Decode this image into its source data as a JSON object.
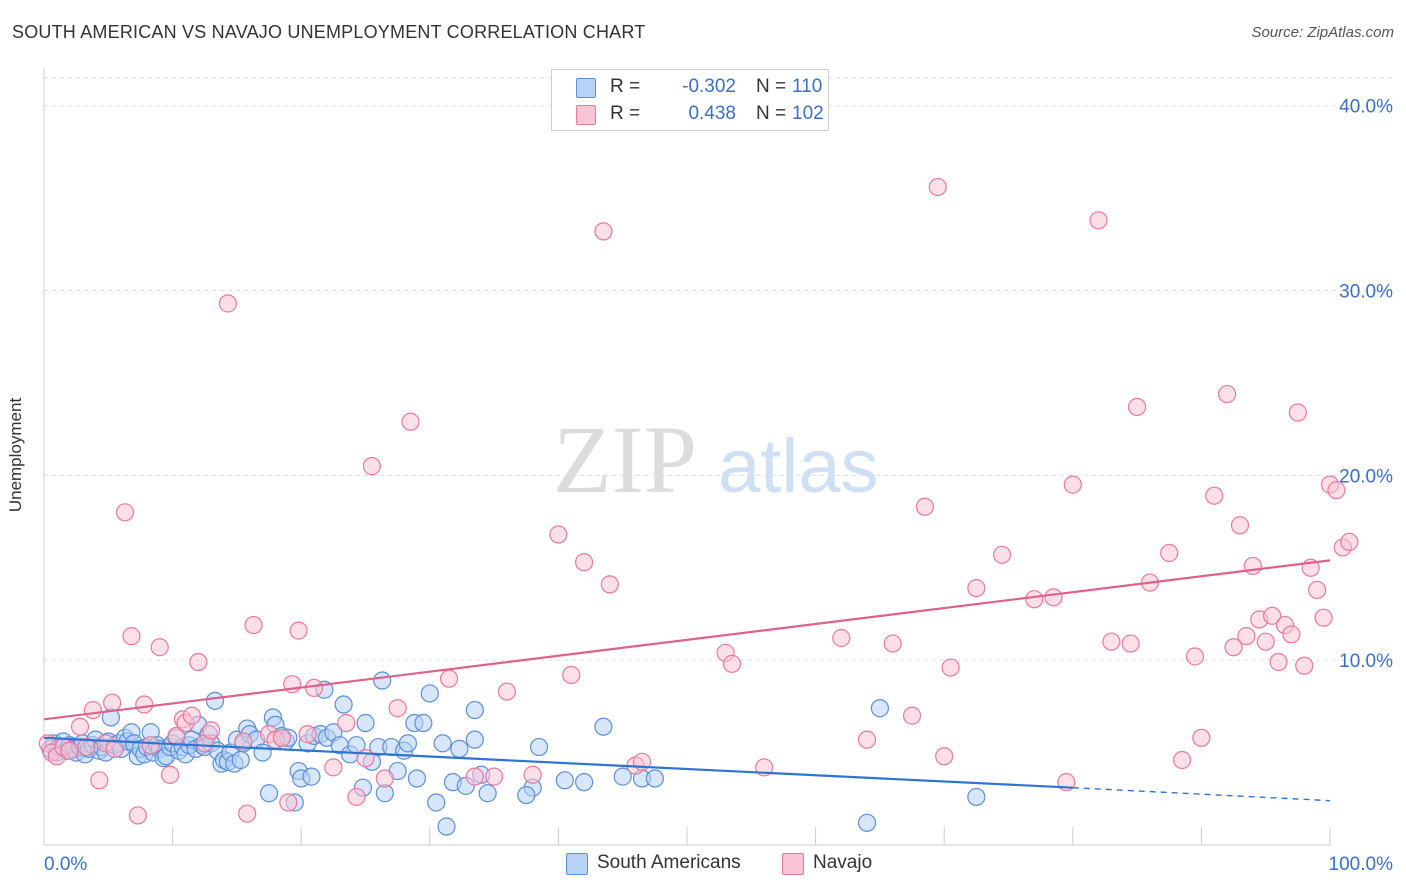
{
  "title": "SOUTH AMERICAN VS NAVAJO UNEMPLOYMENT CORRELATION CHART",
  "source": "Source: ZipAtlas.com",
  "watermark": {
    "zip": "ZIP",
    "atlas": "atlas"
  },
  "legend": {
    "rows": [
      {
        "r_label": "R =",
        "r_value": "-0.302",
        "n_label": "N =",
        "n_value": "110",
        "fill": "#b8d2f5",
        "stroke": "#5b8fd6"
      },
      {
        "r_label": "R =",
        "r_value": "0.438",
        "n_label": "N =",
        "n_value": "102",
        "fill": "#f9c4d4",
        "stroke": "#e8799c"
      }
    ]
  },
  "bottom_legend": [
    {
      "label": "South Americans",
      "fill": "#b8d2f5",
      "stroke": "#5b8fd6"
    },
    {
      "label": "Navajo",
      "fill": "#f9c4d4",
      "stroke": "#e8799c"
    }
  ],
  "chart_data": {
    "type": "scatter",
    "title": "SOUTH AMERICAN VS NAVAJO UNEMPLOYMENT CORRELATION CHART",
    "xlabel": "",
    "ylabel": "Unemployment",
    "xlim": [
      0,
      100
    ],
    "ylim": [
      0,
      41.5
    ],
    "x_tick_labels": [
      {
        "value": 0,
        "label": "0.0%"
      },
      {
        "value": 100,
        "label": "100.0%"
      }
    ],
    "y_tick_labels": [
      {
        "value": 10,
        "label": "10.0%"
      },
      {
        "value": 20,
        "label": "20.0%"
      },
      {
        "value": 30,
        "label": "30.0%"
      },
      {
        "value": 40,
        "label": "40.0%"
      }
    ],
    "y_grid": [
      10,
      20,
      30,
      40
    ],
    "series": [
      {
        "name": "South Americans",
        "color": "#5b8fd6",
        "fill": "#b8d2f5",
        "trend": {
          "x0": 0,
          "y0": 5.8,
          "x1": 80,
          "y1": 3.1,
          "dash_to_x": 100,
          "dash_to_y": 2.4,
          "color": "#2f74d0"
        },
        "points": [
          [
            0.5,
            5.2
          ],
          [
            0.8,
            5.5
          ],
          [
            1.0,
            5.0
          ],
          [
            1.2,
            5.3
          ],
          [
            1.5,
            5.6
          ],
          [
            1.8,
            5.1
          ],
          [
            2.0,
            5.4
          ],
          [
            2.3,
            5.2
          ],
          [
            2.5,
            5.0
          ],
          [
            2.8,
            5.3
          ],
          [
            3.0,
            5.5
          ],
          [
            3.2,
            4.9
          ],
          [
            3.5,
            5.2
          ],
          [
            3.8,
            5.4
          ],
          [
            4.0,
            5.7
          ],
          [
            4.3,
            5.1
          ],
          [
            4.5,
            5.3
          ],
          [
            4.8,
            5.0
          ],
          [
            5.0,
            5.6
          ],
          [
            5.2,
            6.9
          ],
          [
            5.5,
            5.4
          ],
          [
            5.8,
            5.5
          ],
          [
            6.0,
            5.2
          ],
          [
            6.3,
            5.8
          ],
          [
            6.5,
            5.6
          ],
          [
            6.8,
            6.1
          ],
          [
            7.0,
            5.5
          ],
          [
            7.3,
            4.8
          ],
          [
            7.5,
            5.2
          ],
          [
            7.8,
            4.9
          ],
          [
            8.0,
            5.3
          ],
          [
            8.3,
            6.1
          ],
          [
            8.5,
            5.0
          ],
          [
            8.8,
            5.4
          ],
          [
            9.0,
            5.2
          ],
          [
            9.3,
            4.7
          ],
          [
            9.5,
            4.8
          ],
          [
            9.8,
            5.3
          ],
          [
            10.0,
            5.5
          ],
          [
            10.3,
            5.8
          ],
          [
            10.5,
            5.1
          ],
          [
            10.8,
            5.3
          ],
          [
            11.0,
            4.9
          ],
          [
            11.3,
            5.4
          ],
          [
            11.5,
            5.7
          ],
          [
            11.8,
            5.2
          ],
          [
            12.0,
            6.5
          ],
          [
            12.3,
            5.4
          ],
          [
            12.5,
            5.3
          ],
          [
            12.8,
            6.0
          ],
          [
            13.0,
            5.5
          ],
          [
            13.3,
            7.8
          ],
          [
            13.5,
            5.1
          ],
          [
            13.8,
            4.4
          ],
          [
            14.0,
            4.6
          ],
          [
            14.3,
            4.5
          ],
          [
            14.5,
            5.0
          ],
          [
            14.8,
            4.4
          ],
          [
            15.0,
            5.7
          ],
          [
            15.3,
            4.6
          ],
          [
            15.5,
            5.5
          ],
          [
            15.8,
            6.3
          ],
          [
            16.0,
            6.0
          ],
          [
            16.5,
            5.7
          ],
          [
            17.0,
            5.0
          ],
          [
            17.5,
            2.8
          ],
          [
            17.8,
            6.9
          ],
          [
            18.0,
            6.5
          ],
          [
            18.5,
            5.9
          ],
          [
            18.8,
            5.6
          ],
          [
            19.0,
            5.8
          ],
          [
            19.5,
            2.3
          ],
          [
            19.8,
            4.0
          ],
          [
            20.0,
            3.6
          ],
          [
            20.5,
            5.5
          ],
          [
            20.8,
            3.7
          ],
          [
            21.0,
            5.9
          ],
          [
            21.5,
            6.0
          ],
          [
            21.8,
            8.4
          ],
          [
            22.0,
            5.8
          ],
          [
            22.5,
            6.1
          ],
          [
            23.0,
            5.4
          ],
          [
            23.3,
            7.6
          ],
          [
            23.8,
            4.9
          ],
          [
            24.3,
            5.4
          ],
          [
            24.8,
            3.1
          ],
          [
            25.0,
            6.6
          ],
          [
            25.5,
            4.5
          ],
          [
            26.0,
            5.3
          ],
          [
            26.3,
            8.9
          ],
          [
            26.5,
            2.8
          ],
          [
            27.0,
            5.3
          ],
          [
            27.5,
            4.0
          ],
          [
            28.0,
            5.1
          ],
          [
            28.3,
            5.5
          ],
          [
            28.8,
            6.6
          ],
          [
            29.0,
            3.6
          ],
          [
            29.5,
            6.6
          ],
          [
            30.0,
            8.2
          ],
          [
            30.5,
            2.3
          ],
          [
            31.0,
            5.5
          ],
          [
            31.3,
            1.0
          ],
          [
            31.8,
            3.4
          ],
          [
            32.3,
            5.2
          ],
          [
            32.8,
            3.2
          ],
          [
            33.5,
            7.3
          ],
          [
            34.0,
            3.8
          ],
          [
            34.5,
            2.8
          ],
          [
            38.0,
            3.1
          ],
          [
            42.0,
            3.4
          ],
          [
            45.0,
            3.7
          ],
          [
            46.5,
            3.6
          ],
          [
            64.0,
            1.2
          ],
          [
            65.0,
            7.4
          ],
          [
            72.5,
            2.6
          ],
          [
            43.5,
            6.4
          ],
          [
            38.5,
            5.3
          ],
          [
            33.5,
            5.7
          ],
          [
            40.5,
            3.5
          ],
          [
            47.5,
            3.6
          ],
          [
            37.5,
            2.7
          ]
        ]
      },
      {
        "name": "Navajo",
        "color": "#e8799c",
        "fill": "#f9c4d4",
        "trend": {
          "x0": 0,
          "y0": 6.8,
          "x1": 100,
          "y1": 15.4,
          "color": "#e0608d"
        },
        "points": [
          [
            0.3,
            5.5
          ],
          [
            0.6,
            5.0
          ],
          [
            1.0,
            4.8
          ],
          [
            1.5,
            5.3
          ],
          [
            2.0,
            5.1
          ],
          [
            2.8,
            6.4
          ],
          [
            3.3,
            5.3
          ],
          [
            3.8,
            7.3
          ],
          [
            4.3,
            3.5
          ],
          [
            4.8,
            5.5
          ],
          [
            5.3,
            7.7
          ],
          [
            5.5,
            5.2
          ],
          [
            6.3,
            18.0
          ],
          [
            6.8,
            11.3
          ],
          [
            7.3,
            1.6
          ],
          [
            7.8,
            7.6
          ],
          [
            8.3,
            5.4
          ],
          [
            9.0,
            10.7
          ],
          [
            9.8,
            3.8
          ],
          [
            10.3,
            5.9
          ],
          [
            10.8,
            6.8
          ],
          [
            11.0,
            6.6
          ],
          [
            11.5,
            7.0
          ],
          [
            12.0,
            9.9
          ],
          [
            12.5,
            5.5
          ],
          [
            13.0,
            6.2
          ],
          [
            14.3,
            29.3
          ],
          [
            15.5,
            5.6
          ],
          [
            15.8,
            1.7
          ],
          [
            16.3,
            11.9
          ],
          [
            17.5,
            6.0
          ],
          [
            18.0,
            5.7
          ],
          [
            18.5,
            5.8
          ],
          [
            19.0,
            2.3
          ],
          [
            19.3,
            8.7
          ],
          [
            19.8,
            11.6
          ],
          [
            20.5,
            6.0
          ],
          [
            21.0,
            8.5
          ],
          [
            22.5,
            4.2
          ],
          [
            23.5,
            6.6
          ],
          [
            24.3,
            2.6
          ],
          [
            25.0,
            4.7
          ],
          [
            25.5,
            20.5
          ],
          [
            26.5,
            3.6
          ],
          [
            27.5,
            7.4
          ],
          [
            28.5,
            22.9
          ],
          [
            31.5,
            9.0
          ],
          [
            33.5,
            3.7
          ],
          [
            35.0,
            3.7
          ],
          [
            36.0,
            8.3
          ],
          [
            38.0,
            3.8
          ],
          [
            40.0,
            16.8
          ],
          [
            41.0,
            9.2
          ],
          [
            42.0,
            15.3
          ],
          [
            43.5,
            33.2
          ],
          [
            44.0,
            14.1
          ],
          [
            46.0,
            4.3
          ],
          [
            46.5,
            4.5
          ],
          [
            53.0,
            10.4
          ],
          [
            53.5,
            9.8
          ],
          [
            56.0,
            4.2
          ],
          [
            62.0,
            11.2
          ],
          [
            64.0,
            5.7
          ],
          [
            66.0,
            10.9
          ],
          [
            67.5,
            7.0
          ],
          [
            68.5,
            18.3
          ],
          [
            69.5,
            35.6
          ],
          [
            70.0,
            4.8
          ],
          [
            70.5,
            9.6
          ],
          [
            72.5,
            13.9
          ],
          [
            74.5,
            15.7
          ],
          [
            77.0,
            13.3
          ],
          [
            78.5,
            13.4
          ],
          [
            79.5,
            3.4
          ],
          [
            80.0,
            19.5
          ],
          [
            82.0,
            33.8
          ],
          [
            83.0,
            11.0
          ],
          [
            84.5,
            10.9
          ],
          [
            85.0,
            23.7
          ],
          [
            86.0,
            14.2
          ],
          [
            87.5,
            15.8
          ],
          [
            88.5,
            4.6
          ],
          [
            89.5,
            10.2
          ],
          [
            90.0,
            5.8
          ],
          [
            91.0,
            18.9
          ],
          [
            92.0,
            24.4
          ],
          [
            92.5,
            10.7
          ],
          [
            93.0,
            17.3
          ],
          [
            93.5,
            11.3
          ],
          [
            94.0,
            15.1
          ],
          [
            94.5,
            12.2
          ],
          [
            95.0,
            11.0
          ],
          [
            95.5,
            12.4
          ],
          [
            96.0,
            9.9
          ],
          [
            96.5,
            11.9
          ],
          [
            97.0,
            11.4
          ],
          [
            97.5,
            23.4
          ],
          [
            98.0,
            9.7
          ],
          [
            98.5,
            15.0
          ],
          [
            99.0,
            13.8
          ],
          [
            99.5,
            12.3
          ],
          [
            100.0,
            19.5
          ],
          [
            100.5,
            19.2
          ],
          [
            101.0,
            16.1
          ],
          [
            101.5,
            16.4
          ]
        ]
      }
    ]
  }
}
